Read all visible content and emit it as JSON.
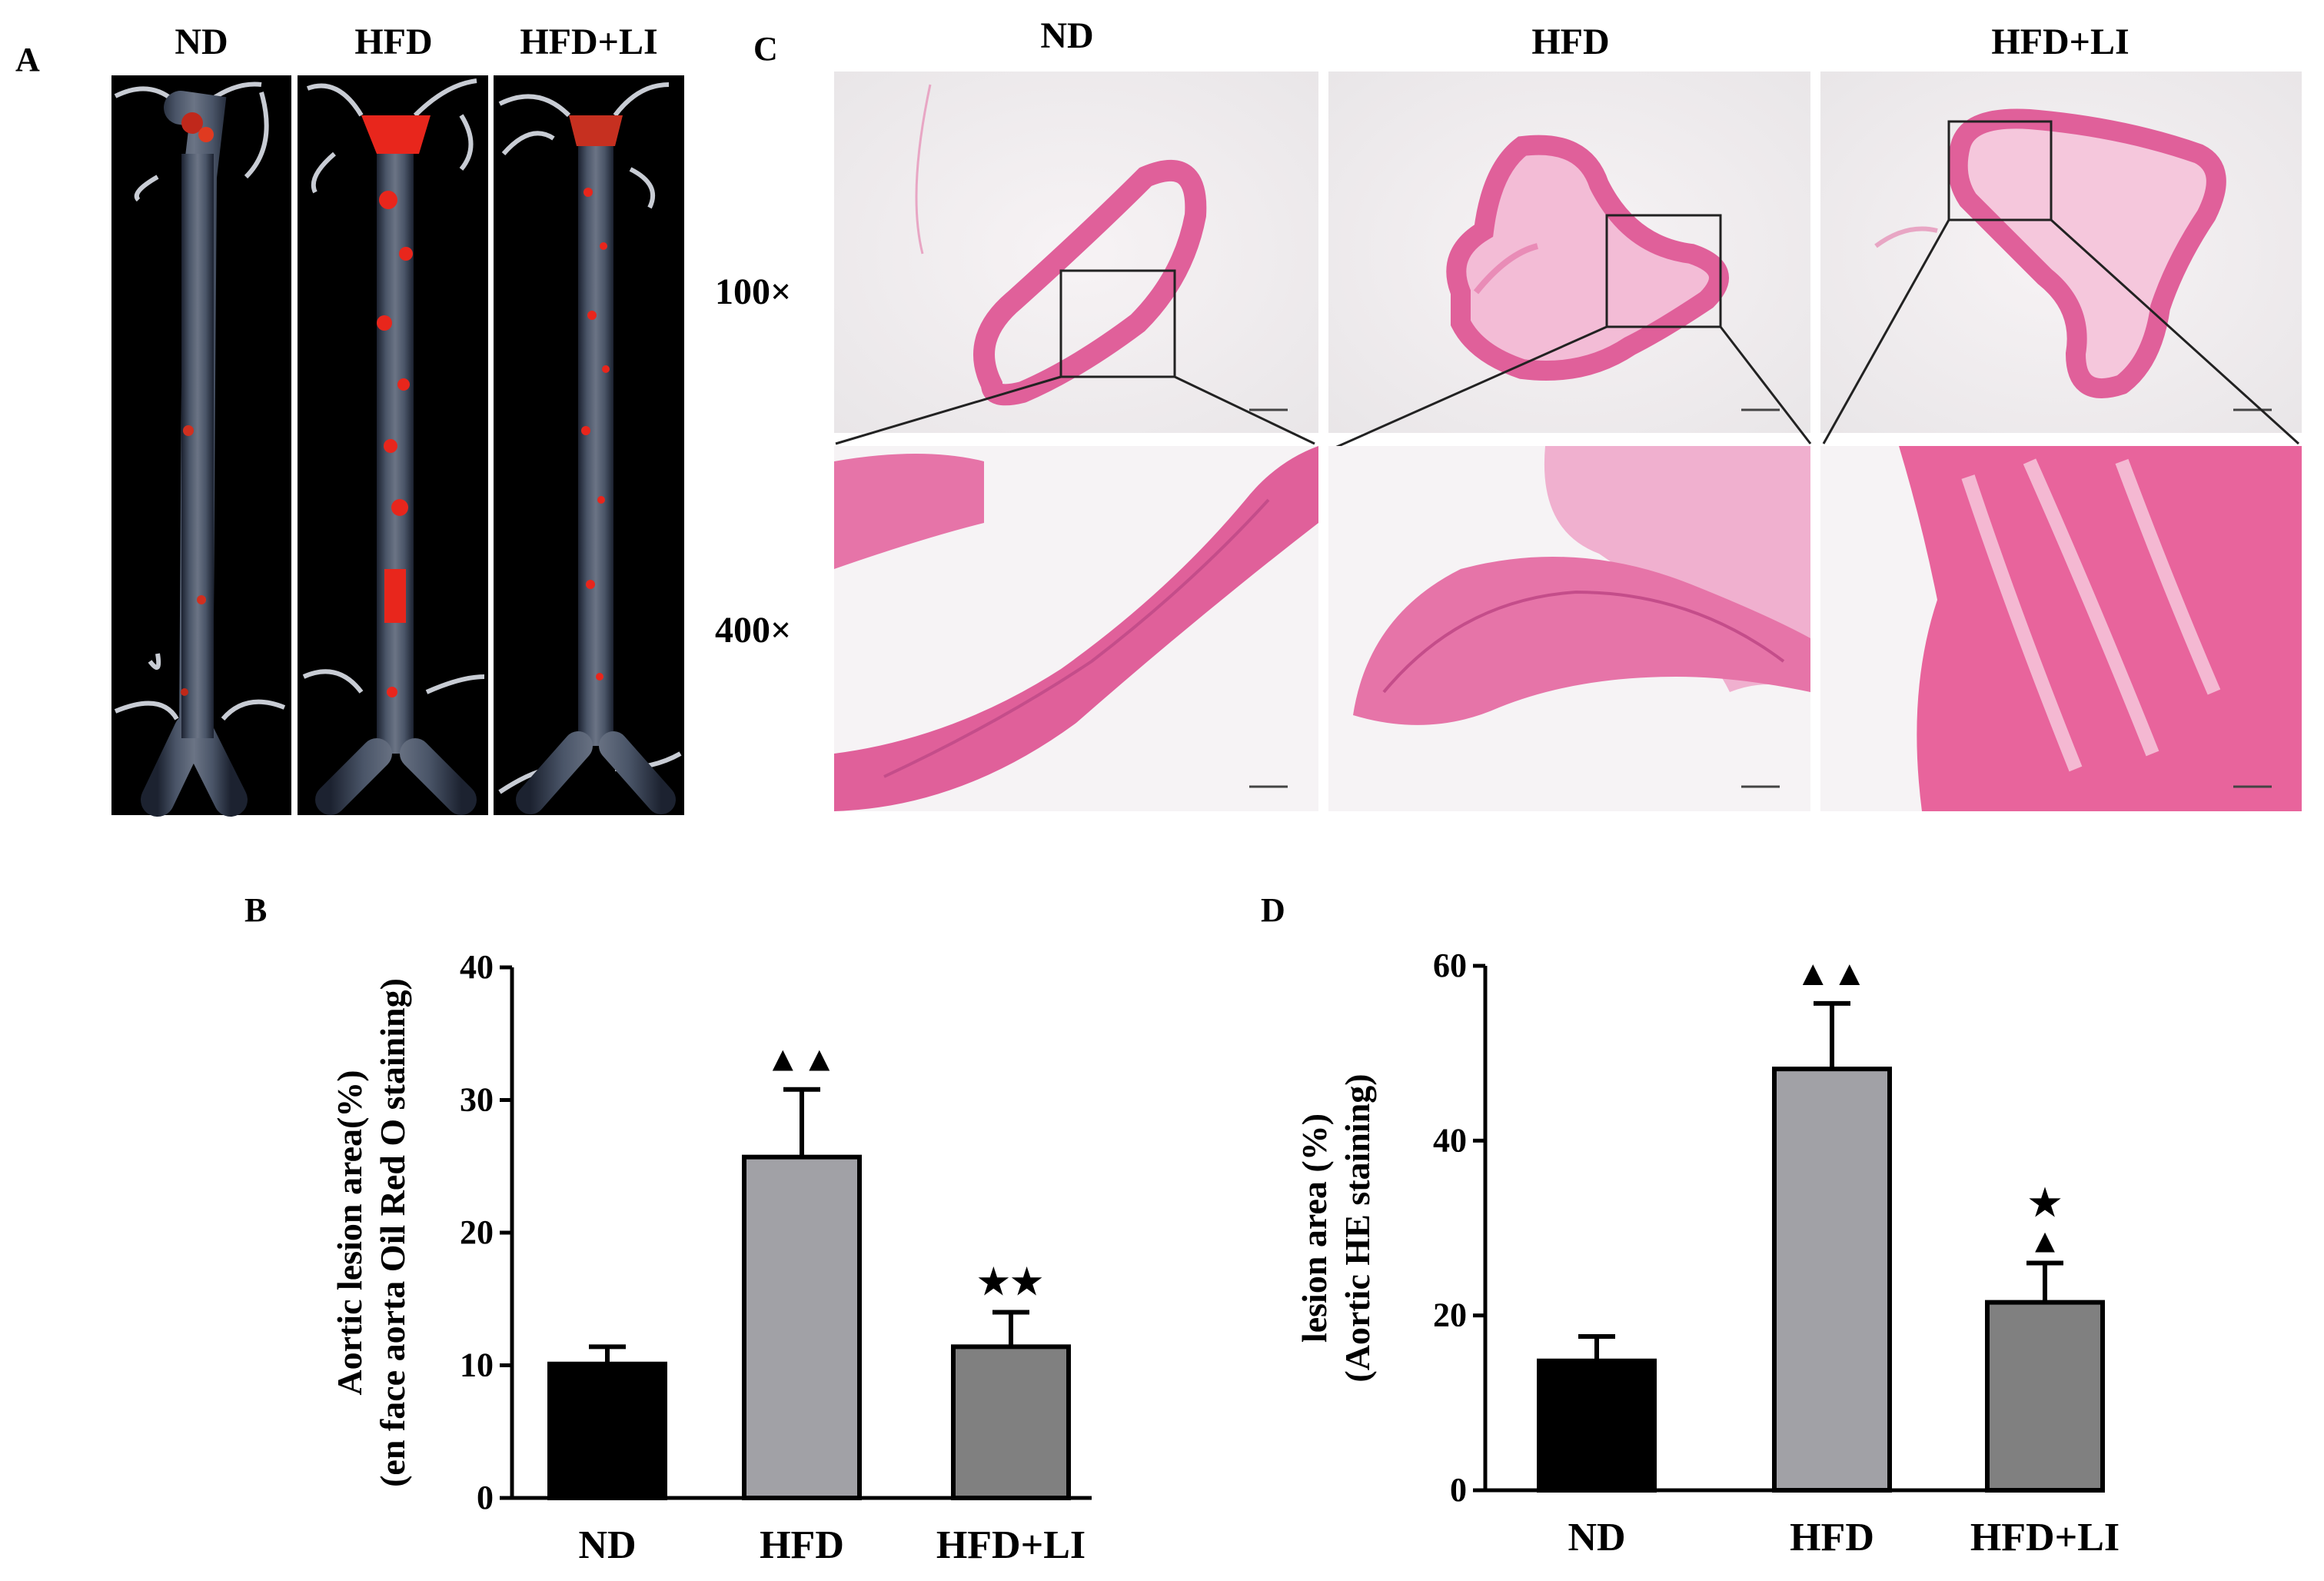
{
  "panel_a": {
    "letter": "A",
    "groups": [
      "ND",
      "HFD",
      "HFD+LI"
    ]
  },
  "panel_c": {
    "letter": "C",
    "groups": [
      "ND",
      "HFD",
      "HFD+LI"
    ],
    "row_labels": [
      "100×",
      "400×"
    ]
  },
  "colors": {
    "ND": "#000000",
    "HFD": "#a1a1a6",
    "HFD+LI": "#808080",
    "he_stain": "#e0609a",
    "oil_red": "#e8261c"
  },
  "chart_data": [
    {
      "type": "bar",
      "panel": "B",
      "categories": [
        "ND",
        "HFD",
        "HFD+LI"
      ],
      "values": [
        10.1,
        25.7,
        11.4
      ],
      "errors": [
        1.3,
        5.1,
        2.6
      ],
      "annotations": [
        "",
        "▲▲",
        "★★"
      ],
      "ylabel_lines": [
        "Aortic lesion area(%)",
        "(en face aorta Oil Red O staining)"
      ],
      "ylim": [
        0,
        40
      ],
      "yticks": [
        0,
        10,
        20,
        30,
        40
      ]
    },
    {
      "type": "bar",
      "panel": "D",
      "categories": [
        "ND",
        "HFD",
        "HFD+LI"
      ],
      "values": [
        14.8,
        48.2,
        21.5
      ],
      "errors": [
        2.8,
        7.5,
        4.5
      ],
      "annotations": [
        "",
        "▲▲",
        "★▲"
      ],
      "ylabel_lines": [
        "lesion area (%)",
        "(Aortic HE staining)"
      ],
      "ylim": [
        0,
        60
      ],
      "yticks": [
        0,
        20,
        40,
        60
      ]
    }
  ]
}
